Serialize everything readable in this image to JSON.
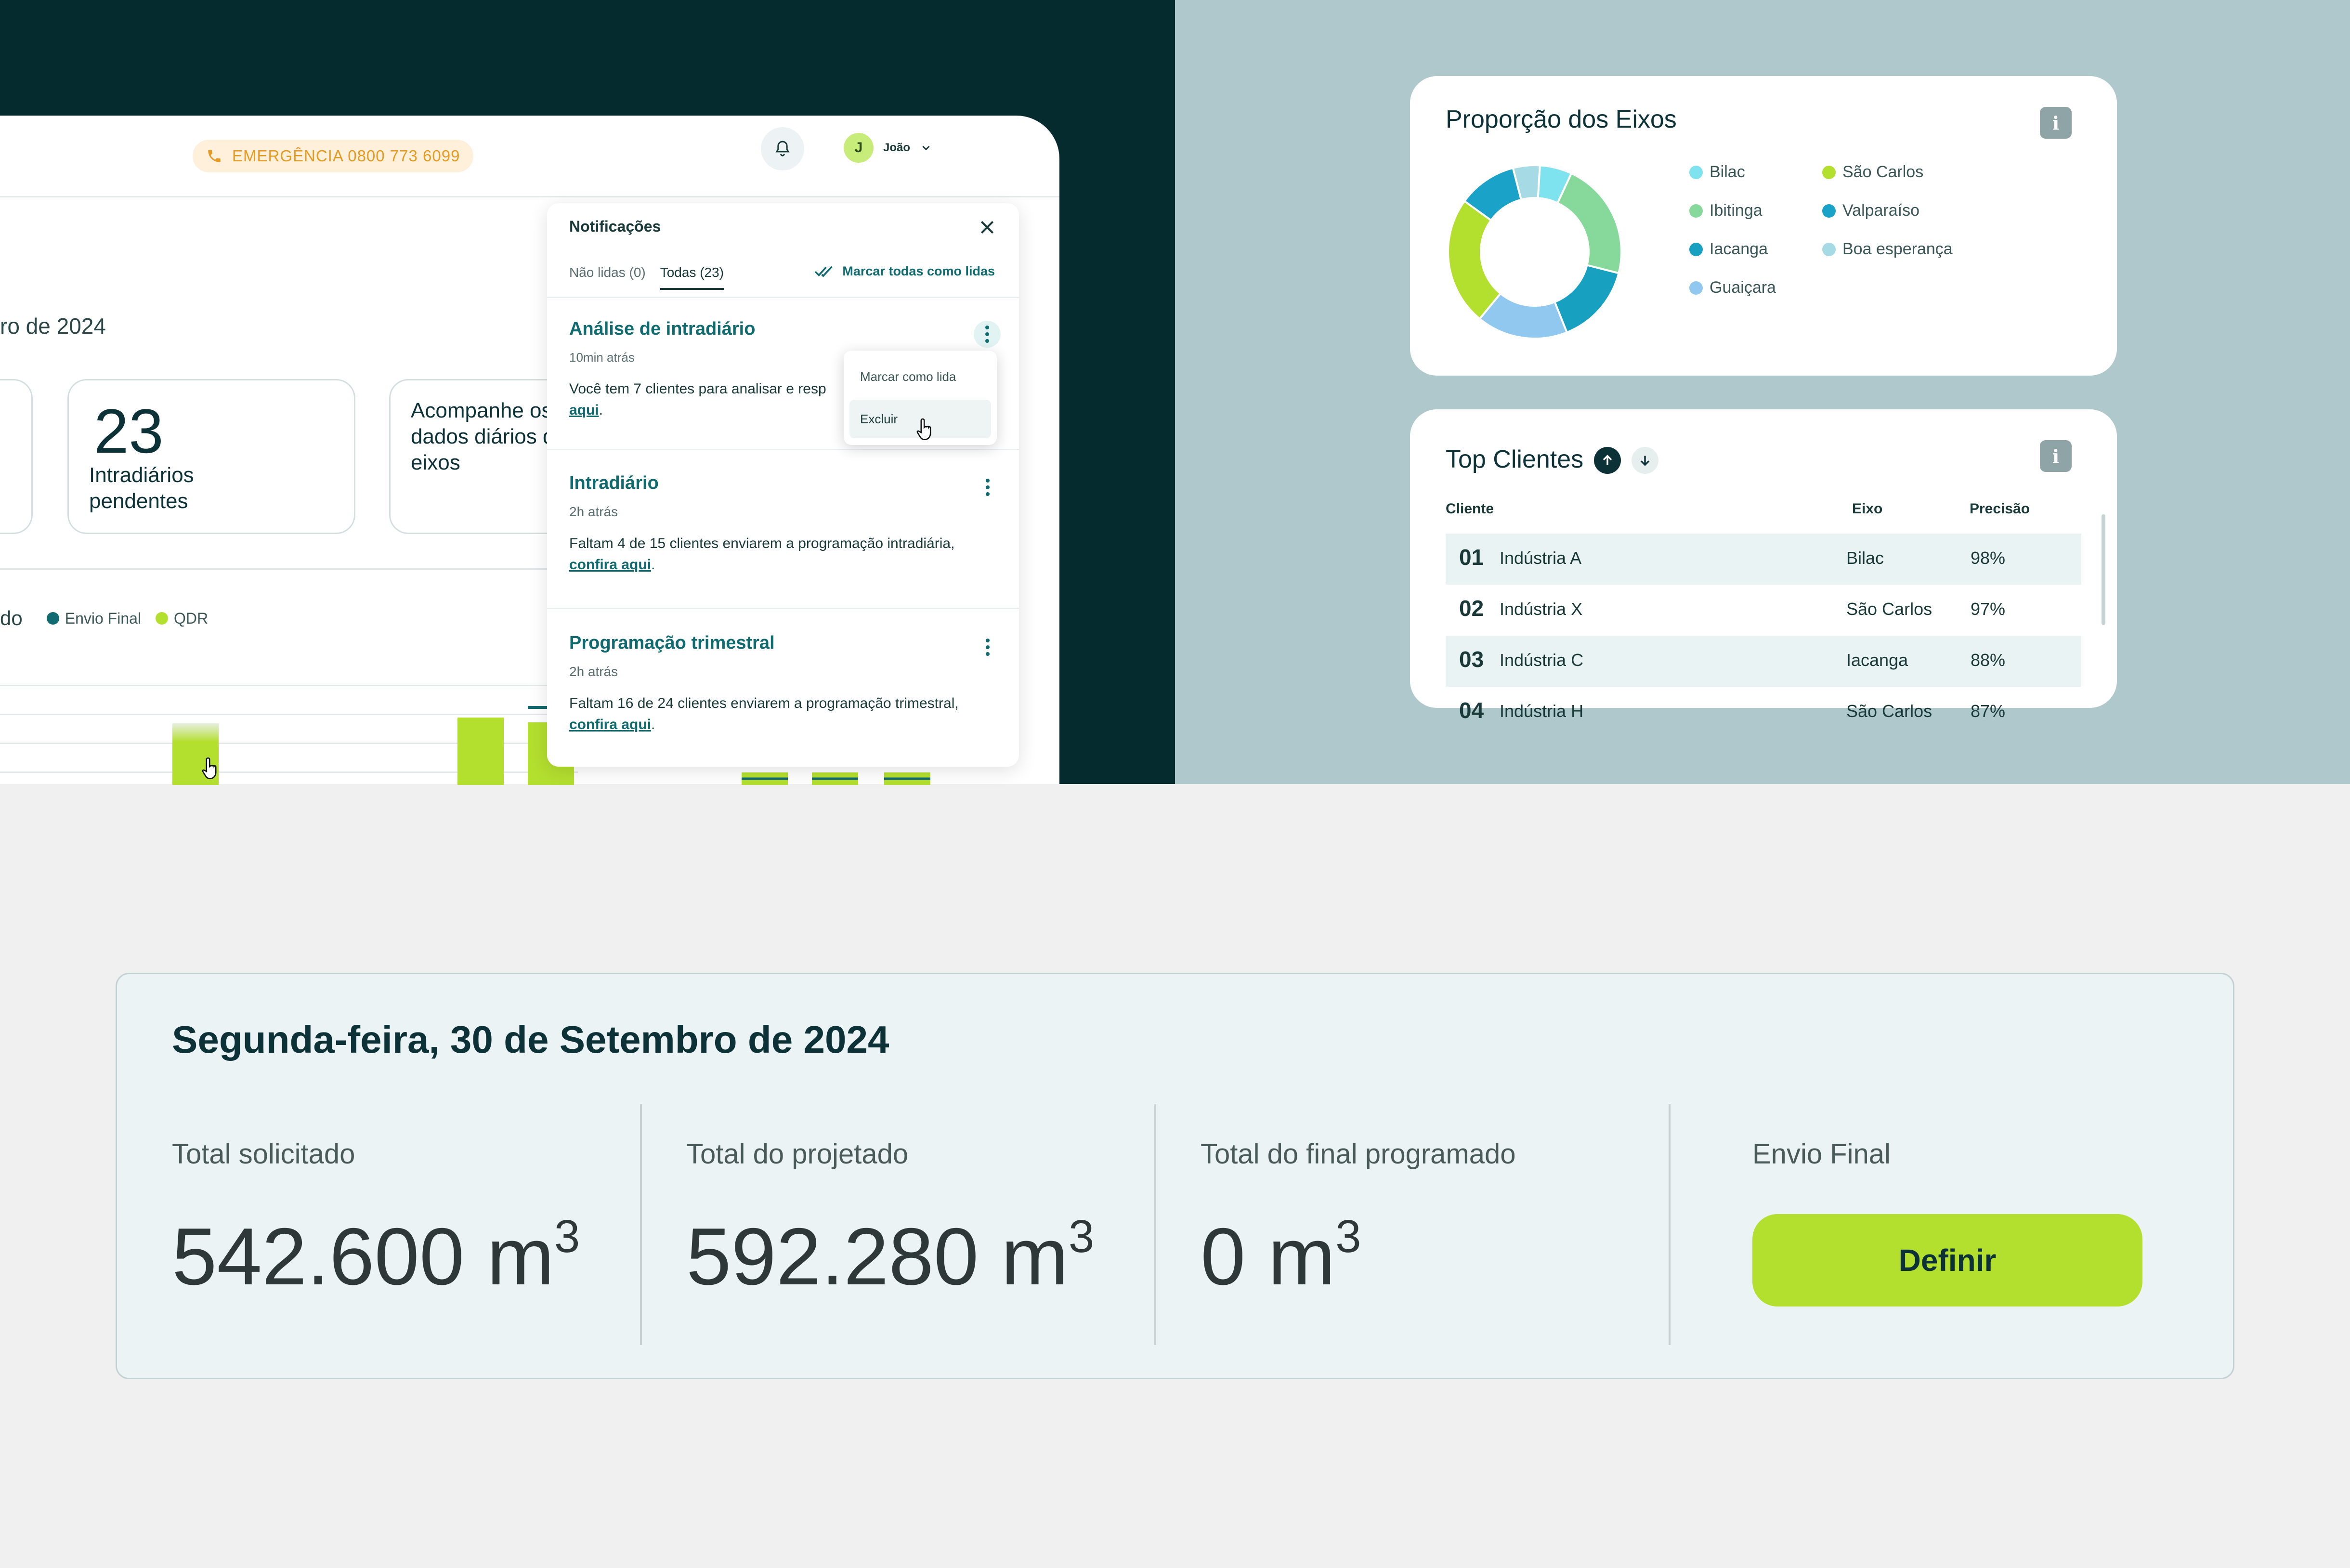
{
  "header": {
    "emergency": "EMERGÊNCIA 0800 773 6099",
    "user_initial": "J",
    "user_name": "João"
  },
  "dashboard": {
    "date_partial": "ro de 2024",
    "kpi_pending_value": "23",
    "kpi_pending_label": "Intradiários pendentes",
    "kpi_follow_label": "Acompanhe os dados diários dos eixos",
    "chart_title_partial": "do",
    "legend": [
      {
        "label": "Envio Final",
        "color": "#0f6b70"
      },
      {
        "label": "QDR",
        "color": "#b3df2f"
      }
    ]
  },
  "notifications": {
    "title": "Notificações",
    "tab_unread": "Não lidas (0)",
    "tab_all": "Todas (23)",
    "mark_all": "Marcar todas como lidas",
    "items": [
      {
        "title": "Análise de intradiário",
        "time": "10min atrás",
        "body": "Você tem 7 clientes para analisar e resp",
        "link": "aqui"
      },
      {
        "title": "Intradiário",
        "time": "2h atrás",
        "body": "Faltam 4 de 15 clientes enviarem a programação intradiária,",
        "link": "confira aqui"
      },
      {
        "title": "Programação trimestral",
        "time": "2h atrás",
        "body": "Faltam 16 de 24 clientes enviarem a programação trimestral,",
        "link": "confira aqui"
      }
    ],
    "context_menu": {
      "mark_read": "Marcar como lida",
      "delete": "Excluir"
    }
  },
  "proportion": {
    "title": "Proporção dos Eixos",
    "info": "i",
    "legend": [
      {
        "label": "Bilac",
        "color": "#7fe3ef"
      },
      {
        "label": "São Carlos",
        "color": "#b3df2f"
      },
      {
        "label": "Ibitinga",
        "color": "#86d99a"
      },
      {
        "label": "Valparaíso",
        "color": "#1aa2c8"
      },
      {
        "label": "Iacanga",
        "color": "#18a0c0"
      },
      {
        "label": "Boa esperança",
        "color": "#a6dbe6"
      },
      {
        "label": "Guaiçara",
        "color": "#90c8ef"
      }
    ]
  },
  "chart_data": {
    "type": "pie",
    "title": "Proporção dos Eixos",
    "series": [
      {
        "name": "Bilac",
        "value": 6
      },
      {
        "name": "Ibitinga",
        "value": 22
      },
      {
        "name": "Iacanga",
        "value": 15
      },
      {
        "name": "Guaiçara",
        "value": 17
      },
      {
        "name": "São Carlos",
        "value": 24
      },
      {
        "name": "Valparaíso",
        "value": 11
      },
      {
        "name": "Boa esperança",
        "value": 5
      }
    ]
  },
  "top_clients": {
    "title": "Top Clientes",
    "info": "i",
    "columns": [
      "Cliente",
      "Eixo",
      "Precisão"
    ],
    "rows": [
      {
        "idx": "01",
        "name": "Indústria A",
        "eixo": "Bilac",
        "prec": "98%"
      },
      {
        "idx": "02",
        "name": "Indústria X",
        "eixo": "São Carlos",
        "prec": "97%"
      },
      {
        "idx": "03",
        "name": "Indústria C",
        "eixo": "Iacanga",
        "prec": "88%"
      },
      {
        "idx": "04",
        "name": "Indústria H",
        "eixo": "São Carlos",
        "prec": "87%"
      }
    ]
  },
  "summary": {
    "date": "Segunda-feira, 30 de Setembro de 2024",
    "requested_label": "Total solicitado",
    "requested_value": "542.600 m",
    "projected_label": "Total do projetado",
    "projected_value": "592.280 m",
    "final_label": "Total do final programado",
    "final_value": "0 m",
    "unit_sup": "3",
    "send_label": "Envio Final",
    "define_button": "Definir"
  }
}
